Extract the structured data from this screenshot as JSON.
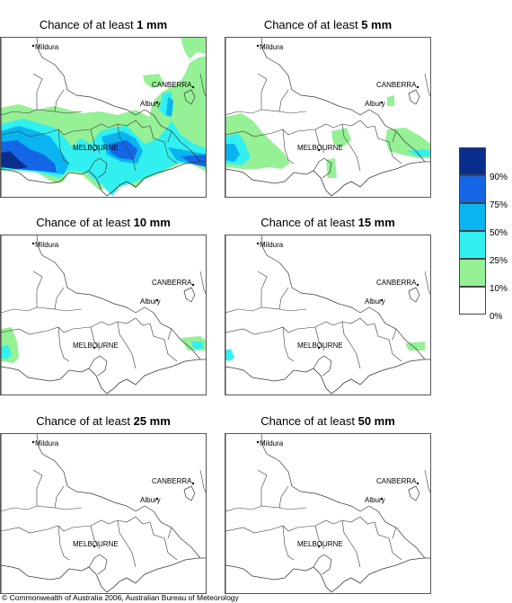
{
  "panels": [
    {
      "title_prefix": "Chance of at least ",
      "title_amount": "1 mm",
      "overlay": "p1"
    },
    {
      "title_prefix": "Chance of at least ",
      "title_amount": "5 mm",
      "overlay": "p5"
    },
    {
      "title_prefix": "Chance of at least ",
      "title_amount": "10 mm",
      "overlay": "p10"
    },
    {
      "title_prefix": "Chance of at least ",
      "title_amount": "15 mm",
      "overlay": "p15"
    },
    {
      "title_prefix": "Chance of at least ",
      "title_amount": "25 mm",
      "overlay": "none"
    },
    {
      "title_prefix": "Chance of at least ",
      "title_amount": "50 mm",
      "overlay": "none"
    }
  ],
  "map_labels": {
    "mildura": "Mildura",
    "canberra": "CANBERRA",
    "albury": "Albury",
    "melbourne": "MELBOURNE"
  },
  "legend": {
    "labels": [
      "90%",
      "75%",
      "50%",
      "25%",
      "10%",
      "0%"
    ],
    "colors": [
      "#0a2e8c",
      "#1466e6",
      "#0ab4f0",
      "#32f0f0",
      "#96f096",
      "#ffffff"
    ]
  },
  "copyright": "© Commonwealth of Australia 2006, Australian Bureau of Meteorology"
}
